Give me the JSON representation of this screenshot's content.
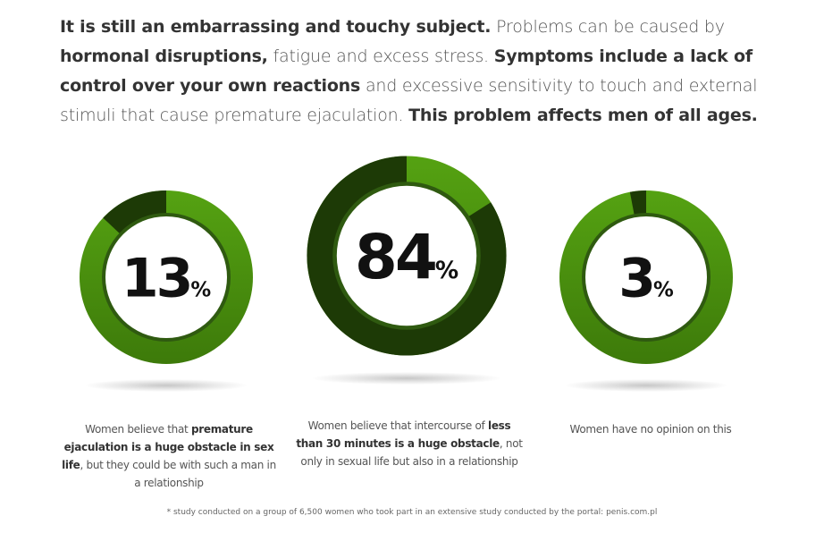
{
  "intro": {
    "s1_bold": "It is still an embarrassing and touchy subject.",
    "s2": " Problems can be caused by ",
    "s3_bold": "hormonal disruptions,",
    "s4": " fatigue and excess stress. ",
    "s5_bold": "Symptoms include a lack of control over your own reactions",
    "s6": " and excessive sensitivity to touch and external stimuli that cause premature ejaculation. ",
    "s7_bold": "This problem affects men of all ages."
  },
  "colors": {
    "ring_light": "#55a212",
    "ring_dark": "#3d7a0a",
    "inner_ring": "#2f5a10",
    "highlight": "#1d3a06",
    "number": "#111111"
  },
  "chart_data": {
    "type": "pie",
    "values": [
      13,
      84,
      3
    ],
    "labels": [
      {
        "number": "13",
        "unit": "%",
        "caption": [
          {
            "t": "Women believe that ",
            "b": false
          },
          {
            "t": "premature ejaculation is a huge obstacle in sex life",
            "b": true
          },
          {
            "t": ", but they could be with such a man in a relationship",
            "b": false
          }
        ]
      },
      {
        "number": "84",
        "unit": "%",
        "caption": [
          {
            "t": "Women believe that intercourse of ",
            "b": false
          },
          {
            "t": "less than 30 minutes is a huge obstacle",
            "b": true
          },
          {
            "t": ", not only in sexual life but also in a relationship",
            "b": false
          }
        ]
      },
      {
        "number": "3",
        "unit": "%",
        "caption": [
          {
            "t": "Women have no opinion on this",
            "b": false
          }
        ]
      }
    ]
  },
  "footnote": "* study conducted on a group of 6,500 women who took part in an extensive study conducted by the portal: penis.com.pl"
}
